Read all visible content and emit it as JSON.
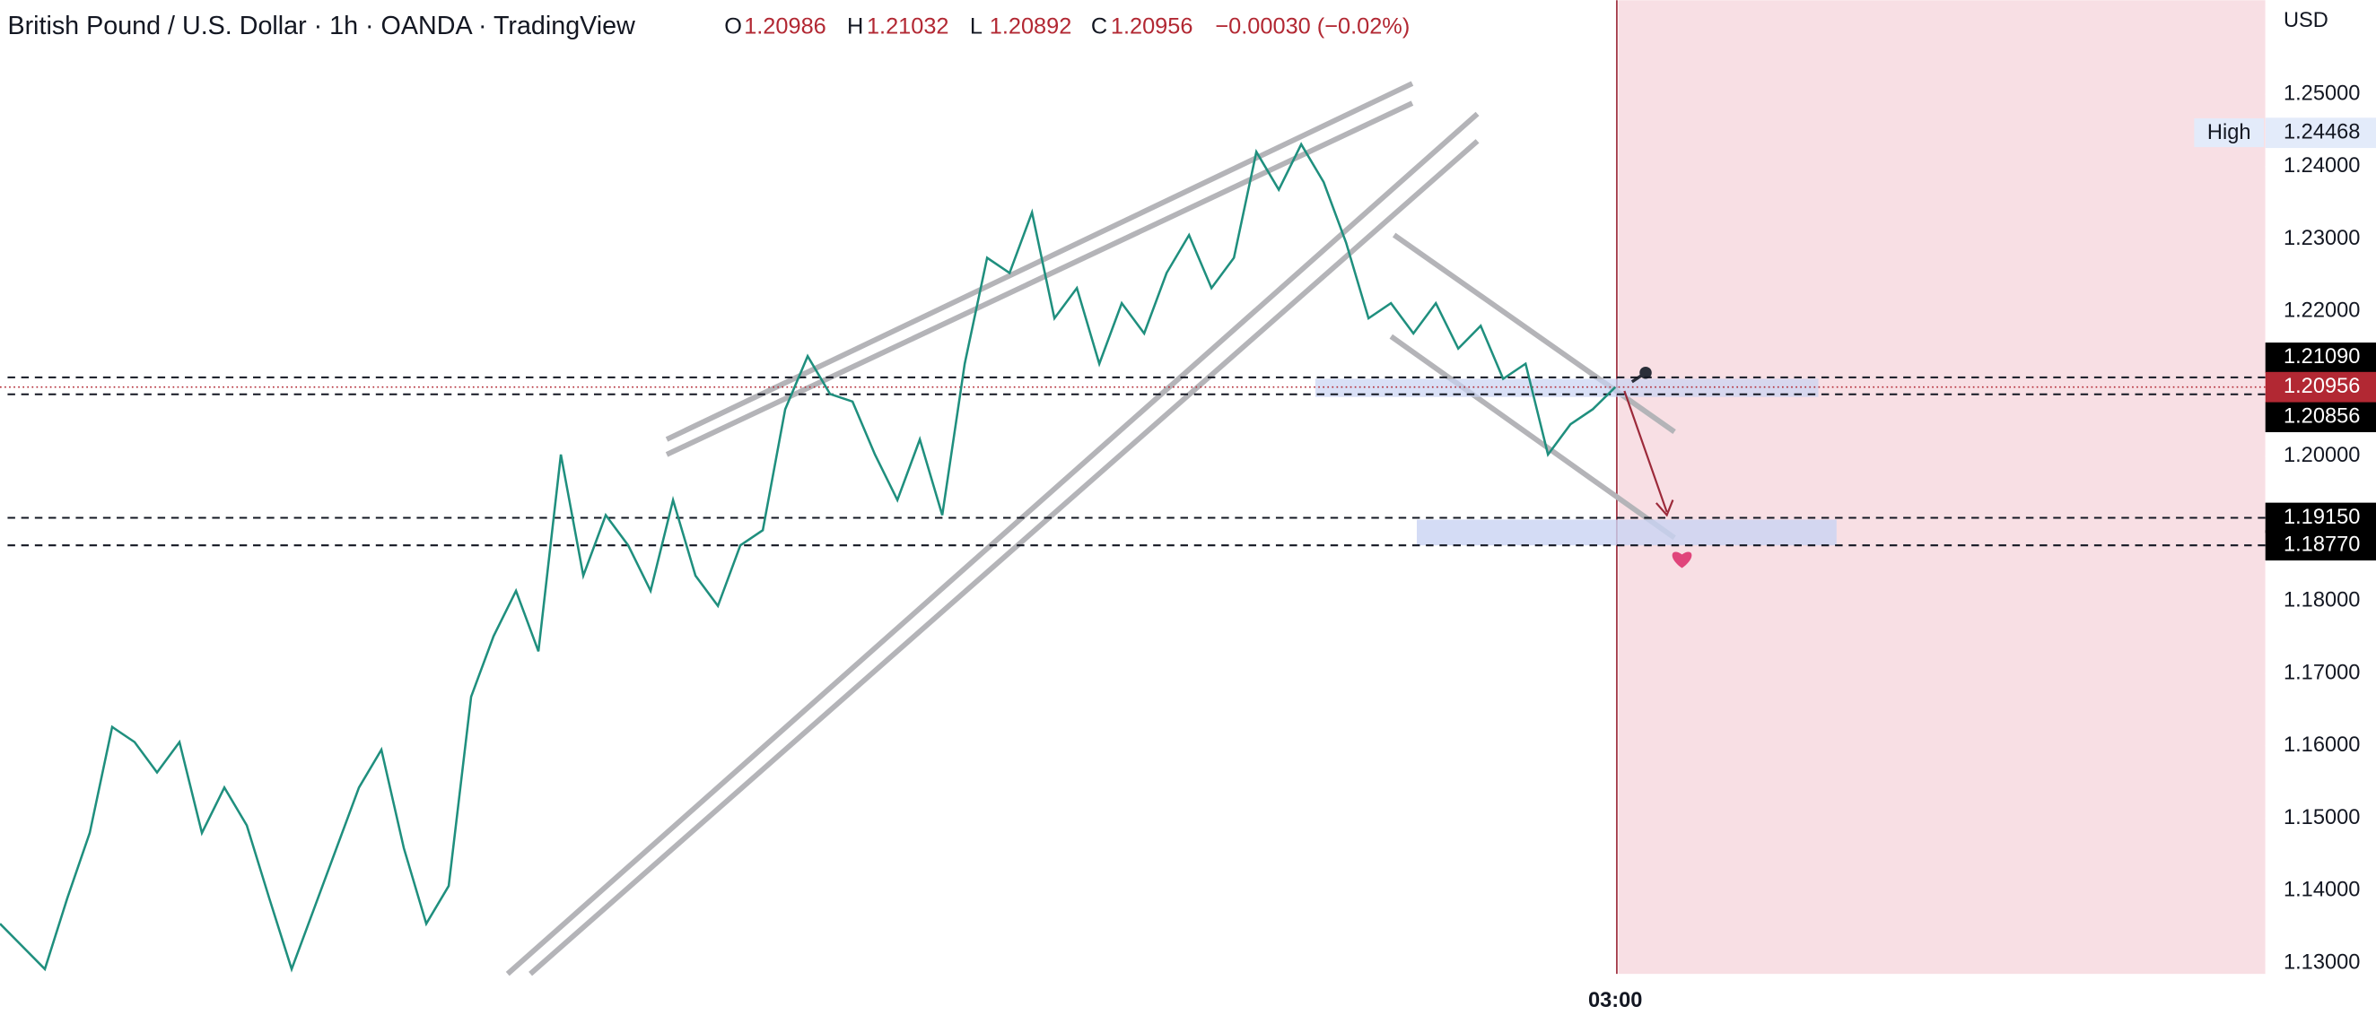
{
  "chart_data": {
    "type": "line",
    "title": "British Pound / U.S. Dollar · 1h · OANDA · TradingView",
    "ohlc": [
      {
        "label": "O",
        "value": 1.20986
      },
      {
        "label": "H",
        "value": 1.21032
      },
      {
        "label": "L",
        "value": 1.20892
      },
      {
        "label": "C",
        "value": 1.20956
      }
    ],
    "change": "−0.00030 (−0.02%)",
    "currency": "USD",
    "high_label": "High",
    "high_value": 1.24468,
    "last_price": 1.20956,
    "last_price_color": "#b22833",
    "levels": [
      {
        "value": 1.2109,
        "label": "1.21090"
      },
      1.20856,
      {
        "value": 1.1915,
        "label": "1.19150"
      },
      {
        "value": 1.1877,
        "label": "1.18770"
      }
    ],
    "color": "#1f8f7e",
    "categories": [
      null,
      null,
      null,
      null,
      null,
      null,
      null,
      null,
      null,
      null,
      null,
      null,
      null,
      null,
      null,
      null,
      null,
      null,
      null,
      null,
      null,
      null,
      null,
      null,
      null,
      null,
      null,
      null,
      null,
      null,
      null,
      null,
      null,
      null,
      null,
      null,
      null,
      null,
      null,
      null,
      null,
      null,
      null,
      null,
      null,
      null,
      null,
      null,
      null,
      null,
      null,
      null,
      null,
      null,
      null,
      null,
      null,
      null,
      null,
      null,
      null,
      null,
      null,
      null,
      null,
      null,
      null,
      null,
      null,
      null,
      null,
      null,
      "03:00"
    ],
    "values": [
      1.13543,
      1.1323,
      1.12916,
      1.13896,
      1.14797,
      1.16261,
      1.16052,
      1.15633,
      1.16052,
      1.14797,
      1.15424,
      1.14902,
      1.13896,
      1.12916,
      1.13752,
      1.14588,
      1.15424,
      1.15947,
      1.14588,
      1.13543,
      1.14065,
      1.16679,
      1.17515,
      1.18142,
      1.17306,
      1.20024,
      1.18351,
      1.19187,
      1.1877,
      1.18142,
      1.19396,
      1.18351,
      1.17933,
      1.1877,
      1.18979,
      1.20651,
      1.21383,
      1.2086,
      1.20756,
      1.20024,
      1.19396,
      1.20233,
      1.19187,
      1.21278,
      1.22742,
      1.22533,
      1.23369,
      1.21906,
      1.22324,
      1.21278,
      1.22115,
      1.21697,
      1.22533,
      1.23056,
      1.22324,
      1.22742,
      1.24206,
      1.23683,
      1.2431,
      1.23787,
      1.22951,
      1.21906,
      1.22115,
      1.21697,
      1.22115,
      1.21488,
      1.21802,
      1.2107,
      1.21279,
      1.20024,
      1.20442,
      1.20651,
      1.20956
    ],
    "ylim": [
      1.1285,
      1.263
    ],
    "yticks": [
      {
        "value": 1.25,
        "label": "1.25000"
      },
      {
        "value": 1.24,
        "label": "1.24000"
      },
      {
        "value": 1.23,
        "label": "1.23000"
      },
      {
        "value": 1.22,
        "label": "1.22000"
      },
      {
        "value": 1.2,
        "label": "1.20000"
      },
      {
        "value": 1.18,
        "label": "1.18000"
      },
      {
        "value": 1.17,
        "label": "1.17000"
      },
      {
        "value": 1.16,
        "label": "1.16000"
      },
      {
        "value": 1.15,
        "label": "1.15000"
      },
      {
        "value": 1.14,
        "label": "1.14000"
      },
      {
        "value": 1.13,
        "label": "1.13000"
      }
    ]
  }
}
